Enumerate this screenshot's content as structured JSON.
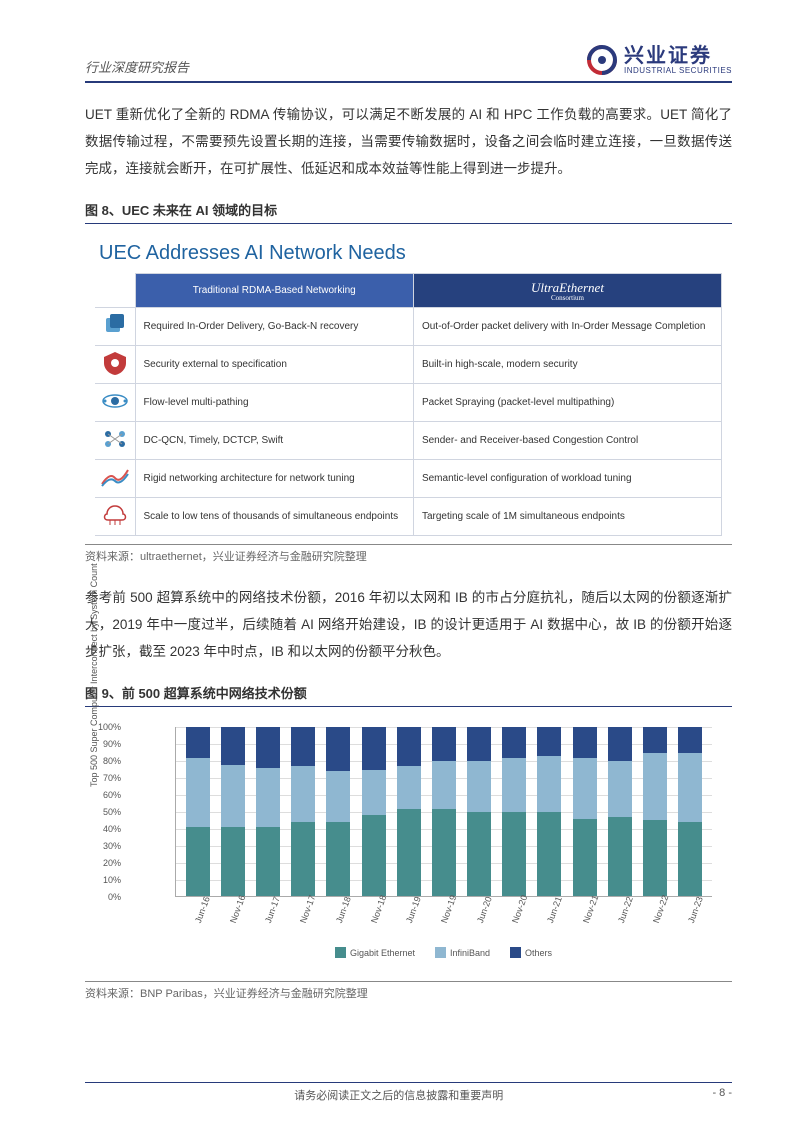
{
  "header": {
    "category": "行业深度研究报告",
    "logo_cn": "兴业证券",
    "logo_en": "INDUSTRIAL SECURITIES"
  },
  "paragraph1": "UET 重新优化了全新的 RDMA 传输协议，可以满足不断发展的 AI 和 HPC 工作负载的高要求。UET 简化了数据传输过程，不需要预先设置长期的连接，当需要传输数据时，设备之间会临时建立连接，一旦数据传送完成，连接就会断开，在可扩展性、低延迟和成本效益等性能上得到进一步提升。",
  "fig8": {
    "caption": "图 8、UEC 未来在 AI 领域的目标",
    "title": "UEC Addresses AI Network Needs",
    "header_left": "Traditional RDMA-Based Networking",
    "header_right_main": "UltraEthernet",
    "header_right_sub": "Consortium",
    "rows": [
      {
        "left": "Required In-Order Delivery, Go-Back-N recovery",
        "right": "Out-of-Order packet delivery with In-Order Message Completion"
      },
      {
        "left": "Security external to specification",
        "right": "Built-in high-scale, modern security"
      },
      {
        "left": "Flow-level multi-pathing",
        "right": "Packet Spraying (packet-level multipathing)"
      },
      {
        "left": "DC-QCN, Timely, DCTCP, Swift",
        "right": "Sender- and Receiver-based Congestion Control"
      },
      {
        "left": "Rigid networking architecture for network tuning",
        "right": "Semantic-level configuration of workload tuning"
      },
      {
        "left": "Scale to low tens of thousands of simultaneous endpoints",
        "right": "Targeting scale of 1M simultaneous endpoints"
      }
    ],
    "source": "资料来源：ultraethernet，兴业证券经济与金融研究院整理"
  },
  "paragraph2": "参考前 500 超算系统中的网络技术份额，2016 年初以太网和 IB 的市占分庭抗礼，随后以太网的份额逐渐扩大，2019 年中一度过半，后续随着 AI 网络开始建设，IB 的设计更适用于 AI 数据中心，故 IB 的份额开始逐步扩张，截至 2023 年中时点，IB 和以太网的份额平分秋色。",
  "fig9": {
    "caption": "图 9、前 500 超算系统中网络技术份额",
    "type": "stacked-bar",
    "y_axis_label": "Top 500 Super Computer Interconnect by System Count",
    "ylim": [
      0,
      100
    ],
    "ytick_step": 10,
    "y_ticks": [
      "0%",
      "10%",
      "20%",
      "30%",
      "40%",
      "50%",
      "60%",
      "70%",
      "80%",
      "90%",
      "100%"
    ],
    "categories": [
      "Jun-16",
      "Nov-16",
      "Jun-17",
      "Nov-17",
      "Jun-18",
      "Nov-18",
      "Jun-19",
      "Nov-19",
      "Jun-20",
      "Nov-20",
      "Jun-21",
      "Nov-21",
      "Jun-22",
      "Nov-22",
      "Jun-23"
    ],
    "series": [
      {
        "name": "Gigabit Ethernet",
        "color": "#468d8d",
        "values": [
          41,
          41,
          41,
          44,
          44,
          48,
          52,
          52,
          50,
          50,
          50,
          46,
          47,
          45,
          44
        ]
      },
      {
        "name": "InfiniBand",
        "color": "#8fb7d1",
        "values": [
          41,
          37,
          35,
          33,
          30,
          27,
          25,
          28,
          30,
          32,
          33,
          36,
          33,
          40,
          41
        ]
      },
      {
        "name": "Others",
        "color": "#2a4a88",
        "values": [
          18,
          22,
          24,
          23,
          26,
          25,
          23,
          20,
          20,
          18,
          17,
          18,
          20,
          15,
          15
        ]
      }
    ],
    "legend": [
      "Gigabit Ethernet",
      "InfiniBand",
      "Others"
    ],
    "legend_colors": [
      "#468d8d",
      "#8fb7d1",
      "#2a4a88"
    ],
    "grid_color": "#dddddd",
    "background_color": "#ffffff",
    "source": "资料来源：BNP Paribas，兴业证券经济与金融研究院整理"
  },
  "footer": {
    "disclaimer": "请务必阅读正文之后的信息披露和重要声明",
    "page": "- 8 -"
  },
  "colors": {
    "brand_navy": "#273a7a",
    "table_header_blue": "#3b5fab",
    "table_header_dark": "#26417e",
    "fig8_title": "#1f63a0"
  }
}
